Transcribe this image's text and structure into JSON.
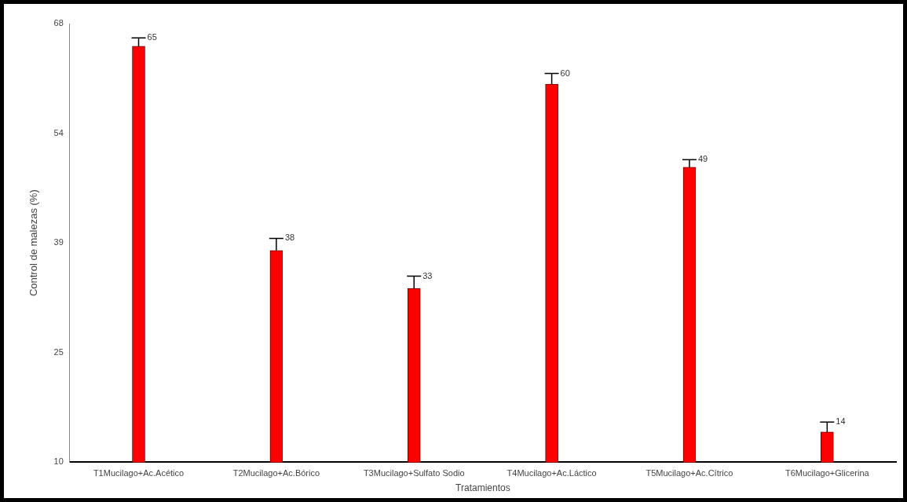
{
  "chart_data": {
    "type": "bar",
    "xlabel": "Tratamientos",
    "ylabel": "Control de malezas (%)",
    "categories": [
      "T1Mucilago+Ac.Acético",
      "T2Mucilago+Ac.Bórico",
      "T3Mucilago+Sulfato Sodio",
      "T4Mucilago+Ac.Láctico",
      "T5Mucilago+Ac.Cítrico",
      "T6Mucilago+Glicerina"
    ],
    "values": [
      65,
      38,
      33,
      60,
      49,
      14
    ],
    "errors": [
      1.1,
      1.6,
      1.6,
      1.4,
      1.0,
      1.3
    ],
    "color": "#ff0000",
    "ylim": [
      10,
      68
    ],
    "yticks": [
      {
        "value": 10,
        "label": "10"
      },
      {
        "value": 24.5,
        "label": "25"
      },
      {
        "value": 39,
        "label": "39"
      },
      {
        "value": 53.5,
        "label": "54"
      },
      {
        "value": 68,
        "label": "68"
      }
    ],
    "data_labels": true,
    "grid": false,
    "legend": false
  }
}
